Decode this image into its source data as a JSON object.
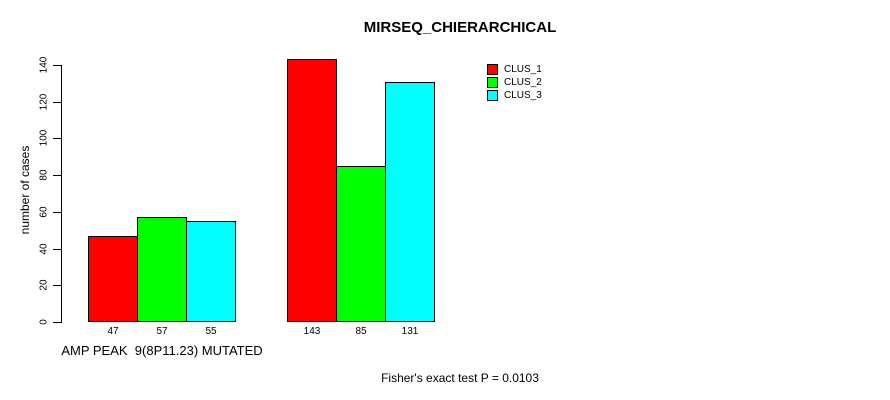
{
  "chart_data": {
    "type": "bar",
    "title": "MIRSEQ_CHIERARCHICAL",
    "ylabel": "number of cases",
    "xlabel": "AMP PEAK  9(8P11.23) MUTATED",
    "annotation": "Fisher's exact test P = 0.0103",
    "categories": [
      "AMP PEAK  9(8P11.23) MUTATED",
      ""
    ],
    "series": [
      {
        "name": "CLUS_1",
        "color": "#ff0000",
        "values": [
          47,
          143
        ]
      },
      {
        "name": "CLUS_2",
        "color": "#00ff00",
        "values": [
          57,
          85
        ]
      },
      {
        "name": "CLUS_3",
        "color": "#00ffff",
        "values": [
          55,
          131
        ]
      }
    ],
    "bar_value_labels": [
      [
        47,
        57,
        55
      ],
      [
        143,
        85,
        131
      ]
    ],
    "yticks": [
      0,
      20,
      40,
      60,
      80,
      100,
      120,
      140
    ],
    "ylim": [
      0,
      143
    ],
    "grid": false,
    "legend_position": "top-right",
    "bar_edge_color": "#000000",
    "background_color": "#ffffff",
    "text_color": "#000000"
  }
}
